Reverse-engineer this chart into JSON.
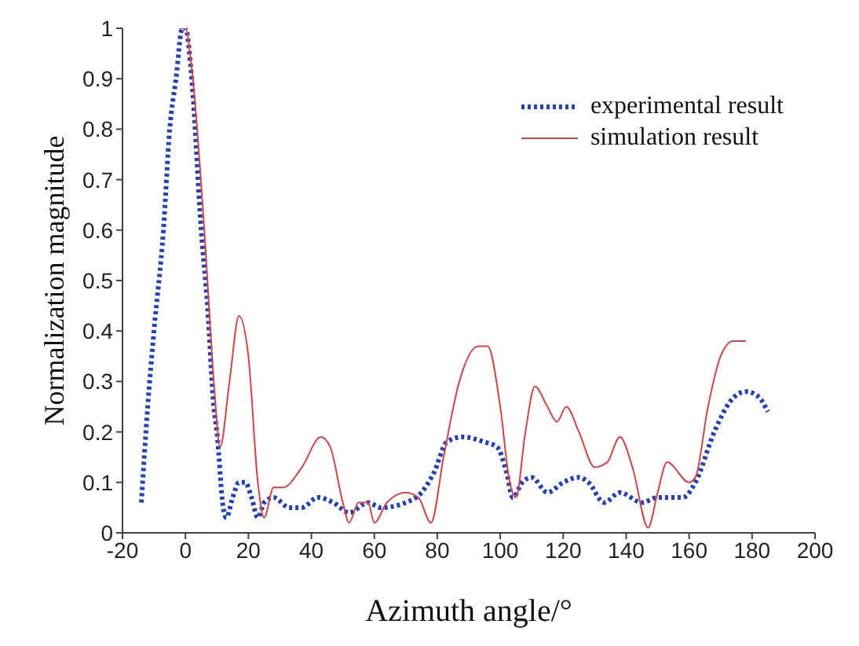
{
  "chart_data": {
    "type": "line",
    "xlabel": "Azimuth angle/°",
    "ylabel": "Normalization magnitude",
    "xlim": [
      -20,
      200
    ],
    "xticks": [
      -20,
      0,
      20,
      40,
      60,
      80,
      100,
      120,
      140,
      160,
      180,
      200
    ],
    "ylim": [
      0,
      1
    ],
    "yticks": [
      0,
      0.1,
      0.2,
      0.3,
      0.4,
      0.5,
      0.6,
      0.7,
      0.8,
      0.9,
      1
    ],
    "grid": false,
    "legend": "top right",
    "marker": "none",
    "series": [
      {
        "name": "experimental result",
        "color": "#2040c0",
        "line_style": "dotted",
        "x": [
          -14,
          -12,
          -10,
          -7,
          -5,
          -3,
          -1,
          0,
          2,
          5,
          7,
          9,
          10,
          12,
          13,
          15,
          17,
          19,
          21,
          23,
          25,
          28,
          33,
          37,
          42,
          47,
          52,
          58,
          62,
          70,
          75,
          79,
          83,
          88,
          95,
          99,
          102,
          104,
          107,
          110,
          115,
          120,
          125,
          128,
          133,
          138,
          145,
          150,
          158,
          162,
          168,
          173,
          178,
          182,
          185
        ],
        "values": [
          0.06,
          0.25,
          0.4,
          0.6,
          0.8,
          0.9,
          1.0,
          1.0,
          0.9,
          0.6,
          0.45,
          0.25,
          0.2,
          0.05,
          0.03,
          0.07,
          0.1,
          0.1,
          0.07,
          0.03,
          0.06,
          0.07,
          0.05,
          0.05,
          0.07,
          0.06,
          0.04,
          0.06,
          0.05,
          0.06,
          0.08,
          0.12,
          0.18,
          0.19,
          0.18,
          0.17,
          0.12,
          0.07,
          0.1,
          0.11,
          0.08,
          0.1,
          0.11,
          0.1,
          0.06,
          0.08,
          0.06,
          0.07,
          0.07,
          0.1,
          0.2,
          0.26,
          0.28,
          0.27,
          0.24
        ]
      },
      {
        "name": "simulation result",
        "color": "#e04040",
        "line_style": "solid",
        "x": [
          -2,
          0,
          2,
          6,
          9,
          11,
          14,
          17,
          20,
          23,
          25,
          28,
          31,
          37,
          43,
          46,
          50,
          52,
          55,
          58,
          60,
          64,
          70,
          74,
          78,
          82,
          87,
          93,
          96,
          100,
          103,
          105,
          108,
          111,
          115,
          118,
          121,
          125,
          130,
          134,
          138,
          142,
          147,
          150,
          153,
          160,
          162,
          166,
          170,
          174,
          178
        ],
        "values": [
          1.0,
          1.0,
          0.92,
          0.6,
          0.3,
          0.17,
          0.3,
          0.43,
          0.35,
          0.1,
          0.03,
          0.09,
          0.09,
          0.13,
          0.19,
          0.17,
          0.06,
          0.02,
          0.06,
          0.06,
          0.02,
          0.06,
          0.08,
          0.07,
          0.02,
          0.15,
          0.3,
          0.37,
          0.37,
          0.25,
          0.1,
          0.07,
          0.2,
          0.29,
          0.25,
          0.22,
          0.25,
          0.2,
          0.13,
          0.14,
          0.19,
          0.13,
          0.01,
          0.08,
          0.14,
          0.1,
          0.11,
          0.25,
          0.35,
          0.38,
          0.38
        ]
      }
    ]
  }
}
